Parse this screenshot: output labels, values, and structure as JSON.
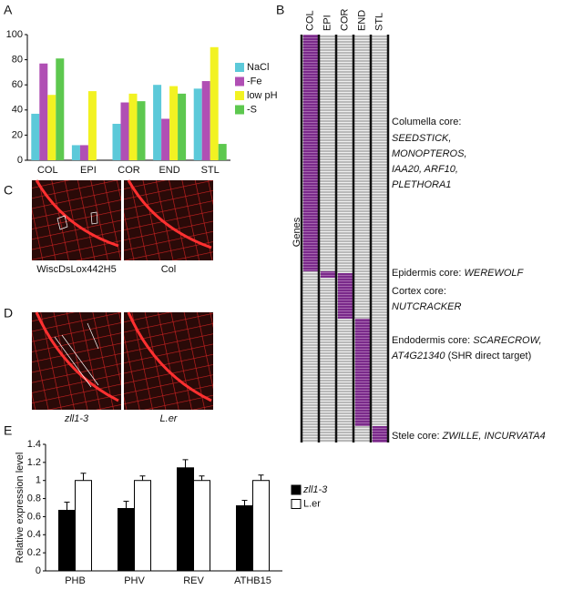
{
  "panel_labels": [
    "A",
    "B",
    "C",
    "D",
    "E"
  ],
  "chart_data": [
    {
      "type": "bar",
      "categories": [
        "COL",
        "EPI",
        "COR",
        "END",
        "STL"
      ],
      "series": [
        {
          "name": "NaCl",
          "color": "#5cc9d9",
          "values": [
            37,
            12,
            29,
            60,
            57
          ]
        },
        {
          "name": "-Fe",
          "color": "#b04fb4",
          "values": [
            77,
            12,
            46,
            33,
            63
          ]
        },
        {
          "name": "low pH",
          "color": "#f2f222",
          "values": [
            52,
            55,
            53,
            59,
            90
          ]
        },
        {
          "name": "-S",
          "color": "#5dc84f",
          "values": [
            81,
            null,
            47,
            53,
            13
          ]
        }
      ],
      "ylim": [
        0,
        100
      ],
      "yticks": [
        0,
        20,
        40,
        60,
        80,
        100
      ],
      "legend": "right"
    },
    {
      "type": "bar",
      "categories": [
        "PHB",
        "PHV",
        "REV",
        "ATHB15"
      ],
      "ylabel": "Relative expression level",
      "series": [
        {
          "name": "zll1-3",
          "color": "#000000",
          "values": [
            0.67,
            0.69,
            1.14,
            0.72
          ],
          "errors": [
            0.09,
            0.08,
            0.09,
            0.06
          ]
        },
        {
          "name": "L.er",
          "color": "#ffffff",
          "values": [
            1.0,
            1.0,
            1.0,
            1.0
          ],
          "errors": [
            0.08,
            0.05,
            0.05,
            0.06
          ]
        }
      ],
      "ylim": [
        0,
        1.4
      ],
      "yticks": [
        0,
        0.2,
        0.4,
        0.6,
        0.8,
        1,
        1.2,
        1.4
      ],
      "legend": "right"
    }
  ],
  "heatmap": {
    "columns": [
      "COL",
      "EPI",
      "COR",
      "END",
      "STL"
    ],
    "ylabel": "Genes",
    "annotations": [
      [
        [
          {
            "text": "Columella core:",
            "italic": false
          }
        ],
        [
          {
            "text": "SEEDSTICK,",
            "italic": true
          }
        ],
        [
          {
            "text": "MONOPTEROS,",
            "italic": true
          }
        ],
        [
          {
            "text": "IAA20, ARF10,",
            "italic": true
          }
        ],
        [
          {
            "text": "PLETHORA1",
            "italic": true
          }
        ]
      ],
      [
        [
          {
            "text": "Epidermis core: ",
            "italic": false
          },
          {
            "text": "WEREWOLF",
            "italic": true
          }
        ]
      ],
      [
        [
          {
            "text": "Cortex core:",
            "italic": false
          }
        ],
        [
          {
            "text": "NUTCRACKER",
            "italic": true
          }
        ]
      ],
      [
        [
          {
            "text": "Endodermis core: ",
            "italic": false
          },
          {
            "text": "SCARECROW,",
            "italic": true
          }
        ],
        [
          {
            "text": "AT4G21340",
            "italic": true
          },
          {
            "text": " (SHR direct target)",
            "italic": false
          }
        ]
      ],
      [
        [
          {
            "text": "Stele core: ",
            "italic": false
          },
          {
            "text": "ZWILLE, INCURVATA4",
            "italic": true
          }
        ]
      ]
    ]
  },
  "images": {
    "C": [
      "WiscDsLox442H5",
      "Col"
    ],
    "D": [
      "zll1-3",
      "L.er"
    ]
  }
}
